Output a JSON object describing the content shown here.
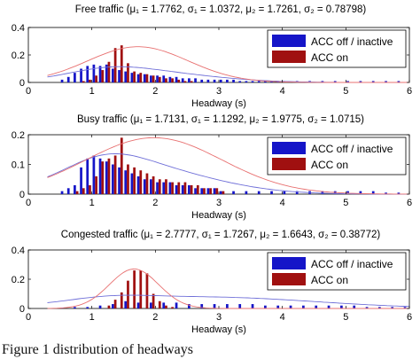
{
  "caption": "Figure 1 distribution of headways",
  "colors": {
    "acc_off": "#1515c8",
    "acc_on": "#a01010",
    "curve": "#e87070",
    "axis": "#000000"
  },
  "chart_data": [
    {
      "type": "bar",
      "title": "Free traffic (μ₁ = 1.7762, σ₁ = 1.0372, μ₂ = 1.7261, σ₂ = 0.78798)",
      "xlabel": "Headway (s)",
      "ylabel": "",
      "xlim": [
        0,
        6
      ],
      "ylim": [
        0,
        0.4
      ],
      "xticks": [
        "0",
        "1",
        "2",
        "3",
        "4",
        "5",
        "6"
      ],
      "yticks": [
        "0",
        "0.2",
        "0.4"
      ],
      "legend": [
        "ACC off / inactive",
        "ACC on"
      ],
      "legend_position": "top-right",
      "series": [
        {
          "name": "ACC off / inactive",
          "color": "#1515c8",
          "x": [
            0.5,
            0.6,
            0.7,
            0.8,
            0.9,
            1.0,
            1.1,
            1.2,
            1.3,
            1.4,
            1.5,
            1.6,
            1.7,
            1.8,
            1.9,
            2.0,
            2.1,
            2.2,
            2.3,
            2.4,
            2.5,
            2.6,
            2.7,
            2.8,
            2.9,
            3.0,
            3.1,
            3.2,
            3.3,
            3.4,
            3.5,
            3.6,
            3.7,
            3.8,
            3.9,
            4.0,
            4.2,
            4.4,
            4.6,
            4.8,
            5.0,
            5.2,
            5.4,
            5.6,
            5.8
          ],
          "values": [
            0.02,
            0.04,
            0.07,
            0.1,
            0.12,
            0.13,
            0.12,
            0.13,
            0.1,
            0.09,
            0.08,
            0.07,
            0.06,
            0.06,
            0.05,
            0.05,
            0.05,
            0.04,
            0.04,
            0.03,
            0.03,
            0.03,
            0.02,
            0.02,
            0.02,
            0.02,
            0.02,
            0.02,
            0.01,
            0.01,
            0.01,
            0.01,
            0.01,
            0.01,
            0.01,
            0.01,
            0.01,
            0.01,
            0.01,
            0.01,
            0.01,
            0.01,
            0.01,
            0.01,
            0.01
          ]
        },
        {
          "name": "ACC on",
          "color": "#a01010",
          "x": [
            0.8,
            0.9,
            1.0,
            1.1,
            1.2,
            1.3,
            1.4,
            1.5,
            1.6,
            1.7,
            1.8,
            1.9,
            2.0,
            2.1,
            2.2,
            2.3,
            2.4,
            2.5
          ],
          "values": [
            0.01,
            0.02,
            0.05,
            0.09,
            0.15,
            0.25,
            0.27,
            0.14,
            0.08,
            0.07,
            0.06,
            0.05,
            0.04,
            0.03,
            0.03,
            0.02,
            0.01,
            0.01
          ]
        }
      ]
    },
    {
      "type": "bar",
      "title": "Busy traffic (μ₁ = 1.7131, σ₁ = 1.1292, μ₂ = 1.9775, σ₂ = 1.0715)",
      "xlabel": "Headway (s)",
      "ylabel": "",
      "xlim": [
        0,
        6
      ],
      "ylim": [
        0,
        0.2
      ],
      "xticks": [
        "0",
        "1",
        "2",
        "3",
        "4",
        "5",
        "6"
      ],
      "yticks": [
        "0",
        "0.1",
        "0.2"
      ],
      "legend": [
        "ACC off / inactive",
        "ACC on"
      ],
      "legend_position": "top-right",
      "series": [
        {
          "name": "ACC off / inactive",
          "color": "#1515c8",
          "x": [
            0.5,
            0.6,
            0.7,
            0.8,
            0.9,
            1.0,
            1.1,
            1.2,
            1.3,
            1.4,
            1.5,
            1.6,
            1.7,
            1.8,
            1.9,
            2.0,
            2.1,
            2.2,
            2.3,
            2.4,
            2.5,
            2.6,
            2.7,
            2.8,
            2.9,
            3.0,
            3.2,
            3.4,
            3.6,
            3.8,
            4.0,
            4.2,
            4.4,
            4.6,
            4.8,
            5.0,
            5.2,
            5.4,
            5.6,
            5.8
          ],
          "values": [
            0.01,
            0.02,
            0.03,
            0.09,
            0.12,
            0.13,
            0.12,
            0.11,
            0.1,
            0.09,
            0.08,
            0.07,
            0.06,
            0.05,
            0.05,
            0.04,
            0.04,
            0.04,
            0.03,
            0.03,
            0.03,
            0.02,
            0.02,
            0.02,
            0.02,
            0.01,
            0.01,
            0.01,
            0.01,
            0.01,
            0.01,
            0.01,
            0.01,
            0.01,
            0.01,
            0.01,
            0.01,
            0.01,
            0.005,
            0.005
          ]
        },
        {
          "name": "ACC on",
          "color": "#a01010",
          "x": [
            0.7,
            0.8,
            0.9,
            1.0,
            1.1,
            1.2,
            1.3,
            1.4,
            1.5,
            1.6,
            1.7,
            1.8,
            1.9,
            2.0,
            2.1,
            2.2,
            2.3,
            2.4,
            2.5,
            2.6,
            2.7,
            2.8,
            2.9,
            3.0
          ],
          "values": [
            0.01,
            0.02,
            0.03,
            0.06,
            0.11,
            0.12,
            0.13,
            0.19,
            0.1,
            0.09,
            0.08,
            0.07,
            0.06,
            0.05,
            0.05,
            0.04,
            0.04,
            0.04,
            0.03,
            0.03,
            0.02,
            0.02,
            0.02,
            0.01
          ]
        }
      ]
    },
    {
      "type": "bar",
      "title": "Congested traffic (μ₁ = 2.7777, σ₁ = 1.7267, μ₂ = 1.6643, σ₂ = 0.38772)",
      "xlabel": "Headway (s)",
      "ylabel": "",
      "xlim": [
        0,
        6
      ],
      "ylim": [
        0,
        0.4
      ],
      "xticks": [
        "0",
        "1",
        "2",
        "3",
        "4",
        "5",
        "6"
      ],
      "yticks": [
        "0",
        "0.2",
        "0.4"
      ],
      "legend": [
        "ACC off / inactive",
        "ACC on"
      ],
      "legend_position": "top-right",
      "series": [
        {
          "name": "ACC off / inactive",
          "color": "#1515c8",
          "x": [
            0.5,
            0.7,
            0.9,
            1.1,
            1.3,
            1.5,
            1.7,
            1.9,
            2.1,
            2.3,
            2.5,
            2.7,
            2.9,
            3.1,
            3.3,
            3.5,
            3.7,
            3.9,
            4.1,
            4.3,
            4.5,
            4.7,
            4.9,
            5.1,
            5.3,
            5.5,
            5.7,
            5.9
          ],
          "values": [
            0.005,
            0.01,
            0.01,
            0.02,
            0.03,
            0.05,
            0.04,
            0.04,
            0.04,
            0.04,
            0.03,
            0.03,
            0.03,
            0.03,
            0.03,
            0.03,
            0.02,
            0.02,
            0.02,
            0.02,
            0.02,
            0.02,
            0.02,
            0.02,
            0.01,
            0.01,
            0.01,
            0.01
          ]
        },
        {
          "name": "ACC on",
          "color": "#a01010",
          "x": [
            1.2,
            1.3,
            1.4,
            1.5,
            1.6,
            1.7,
            1.8,
            1.9,
            2.0,
            2.1,
            2.2
          ],
          "values": [
            0.02,
            0.06,
            0.11,
            0.19,
            0.26,
            0.26,
            0.24,
            0.1,
            0.05,
            0.02,
            0.01
          ]
        }
      ]
    }
  ]
}
